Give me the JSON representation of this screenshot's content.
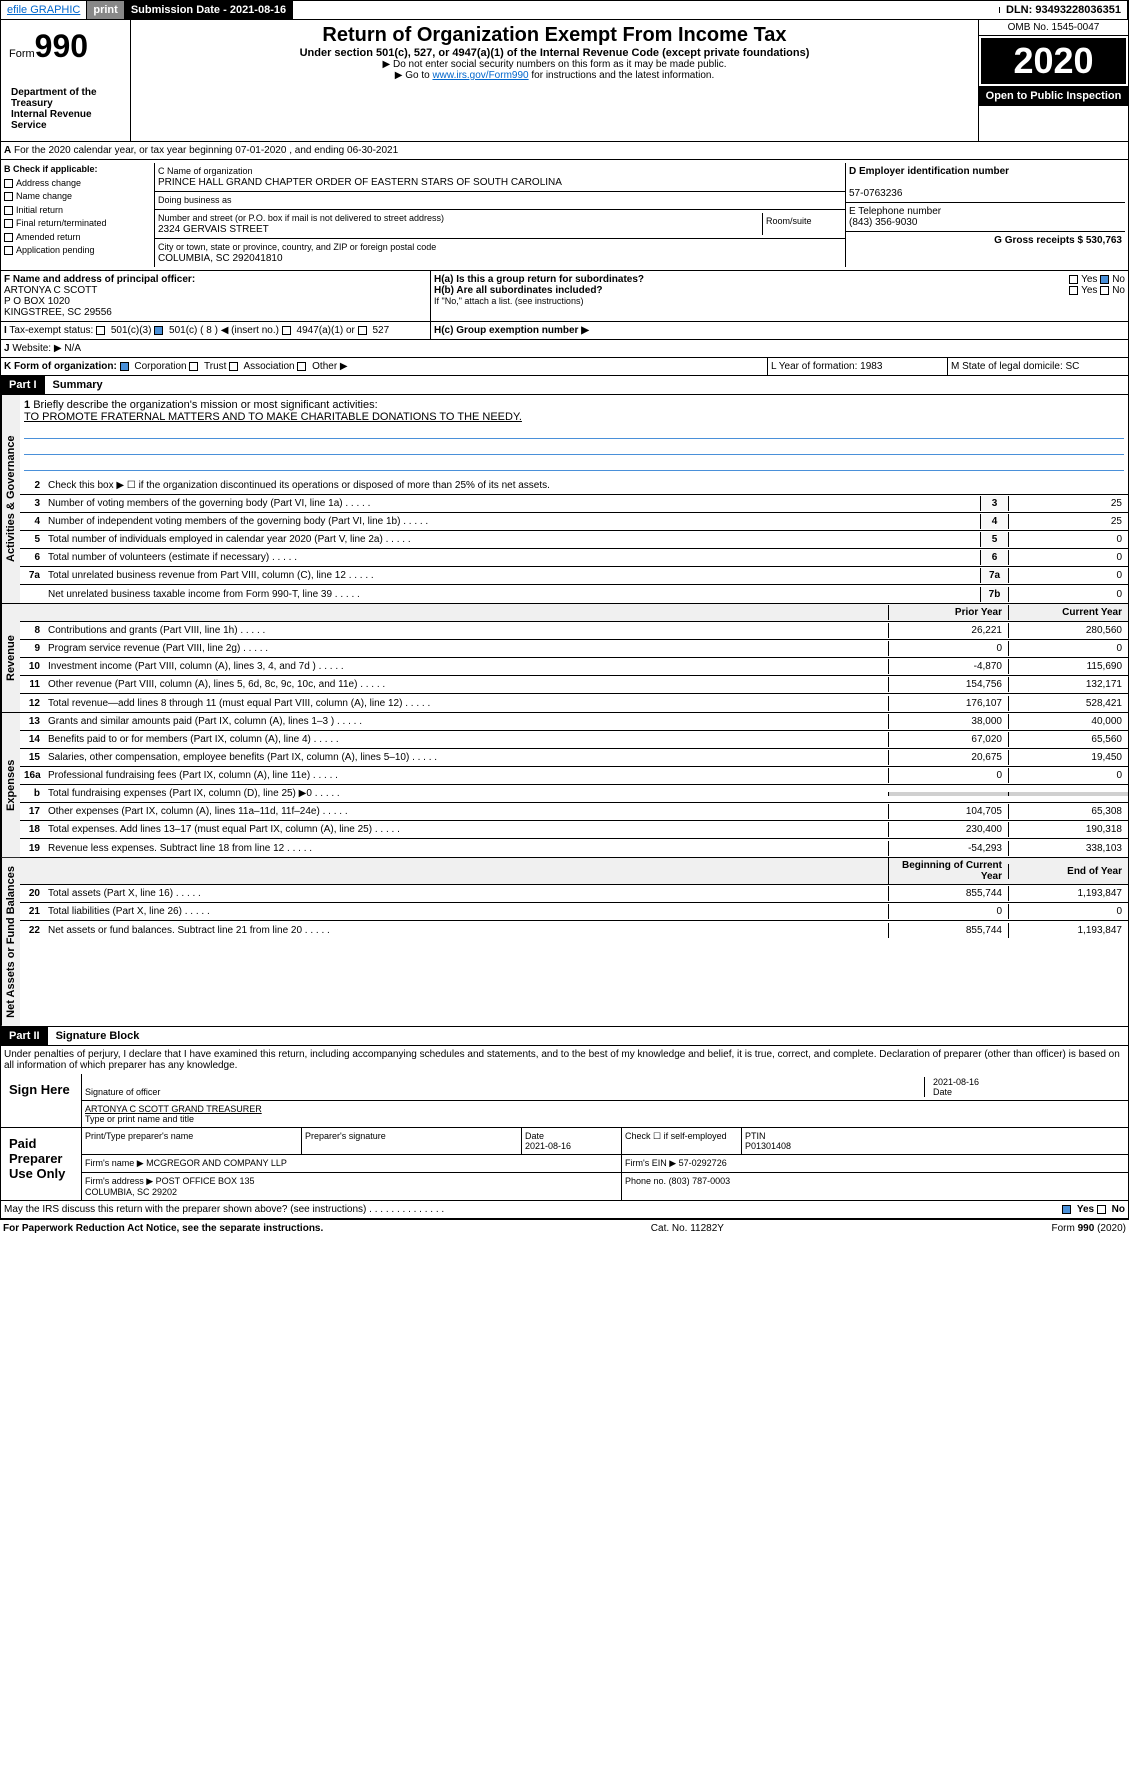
{
  "topbar": {
    "efile": "efile GRAPHIC",
    "print": "print",
    "submission_label": "Submission Date - 2021-08-16",
    "dln": "DLN: 93493228036351"
  },
  "header": {
    "form_prefix": "Form",
    "form_number": "990",
    "title": "Return of Organization Exempt From Income Tax",
    "subtitle": "Under section 501(c), 527, or 4947(a)(1) of the Internal Revenue Code (except private foundations)",
    "note1": "▶ Do not enter social security numbers on this form as it may be made public.",
    "note2_prefix": "▶ Go to ",
    "note2_link": "www.irs.gov/Form990",
    "note2_suffix": " for instructions and the latest information.",
    "dept": "Department of the Treasury\nInternal Revenue Service",
    "omb": "OMB No. 1545-0047",
    "year": "2020",
    "open": "Open to Public Inspection"
  },
  "section_a": {
    "tax_year": "For the 2020 calendar year, or tax year beginning 07-01-2020    , and ending 06-30-2021",
    "check_label": "B Check if applicable:",
    "checks": [
      "Address change",
      "Name change",
      "Initial return",
      "Final return/terminated",
      "Amended return",
      "Application pending"
    ],
    "c_label": "C Name of organization",
    "org_name": "PRINCE HALL GRAND CHAPTER ORDER OF EASTERN STARS OF SOUTH CAROLINA",
    "dba_label": "Doing business as",
    "addr_label": "Number and street (or P.O. box if mail is not delivered to street address)",
    "room_label": "Room/suite",
    "address": "2324 GERVAIS STREET",
    "city_label": "City or town, state or province, country, and ZIP or foreign postal code",
    "city": "COLUMBIA, SC  292041810",
    "d_label": "D Employer identification number",
    "ein": "57-0763236",
    "e_label": "E Telephone number",
    "phone": "(843) 356-9030",
    "g_label": "G Gross receipts $ 530,763",
    "f_label": "F  Name and address of principal officer:",
    "officer": "ARTONYA C SCOTT\nP O BOX 1020\nKINGSTREE, SC  29556",
    "ha_label": "H(a)  Is this a group return for subordinates?",
    "hb_label": "H(b)  Are all subordinates included?",
    "hb_note": "If \"No,\" attach a list. (see instructions)",
    "hc_label": "H(c)  Group exemption number ▶",
    "yes": "Yes",
    "no": "No",
    "i_label": "Tax-exempt status:",
    "i_501c3": "501(c)(3)",
    "i_501c": "501(c) ( 8 ) ◀ (insert no.)",
    "i_4947": "4947(a)(1) or",
    "i_527": "527",
    "j_label": "Website: ▶",
    "website": "N/A",
    "k_label": "K Form of organization:",
    "k_corp": "Corporation",
    "k_trust": "Trust",
    "k_assoc": "Association",
    "k_other": "Other ▶",
    "l_label": "L Year of formation: 1983",
    "m_label": "M State of legal domicile: SC"
  },
  "part1": {
    "header": "Part I",
    "title": "Summary",
    "line1_label": "Briefly describe the organization's mission or most significant activities:",
    "mission": "TO PROMOTE FRATERNAL MATTERS AND TO MAKE CHARITABLE DONATIONS TO THE NEEDY.",
    "line2": "Check this box ▶ ☐  if the organization discontinued its operations or disposed of more than 25% of its net assets.",
    "vlabels": {
      "gov": "Activities & Governance",
      "rev": "Revenue",
      "exp": "Expenses",
      "net": "Net Assets or Fund Balances"
    },
    "cols": {
      "prior": "Prior Year",
      "current": "Current Year",
      "begin": "Beginning of Current Year",
      "end": "End of Year"
    },
    "rows": [
      {
        "n": "3",
        "d": "Number of voting members of the governing body (Part VI, line 1a)",
        "box": "3",
        "v2": "25"
      },
      {
        "n": "4",
        "d": "Number of independent voting members of the governing body (Part VI, line 1b)",
        "box": "4",
        "v2": "25"
      },
      {
        "n": "5",
        "d": "Total number of individuals employed in calendar year 2020 (Part V, line 2a)",
        "box": "5",
        "v2": "0"
      },
      {
        "n": "6",
        "d": "Total number of volunteers (estimate if necessary)",
        "box": "6",
        "v2": "0"
      },
      {
        "n": "7a",
        "d": "Total unrelated business revenue from Part VIII, column (C), line 12",
        "box": "7a",
        "v2": "0"
      },
      {
        "n": "",
        "d": "Net unrelated business taxable income from Form 990-T, line 39",
        "box": "7b",
        "v2": "0"
      }
    ],
    "rev_rows": [
      {
        "n": "8",
        "d": "Contributions and grants (Part VIII, line 1h)",
        "v1": "26,221",
        "v2": "280,560"
      },
      {
        "n": "9",
        "d": "Program service revenue (Part VIII, line 2g)",
        "v1": "0",
        "v2": "0"
      },
      {
        "n": "10",
        "d": "Investment income (Part VIII, column (A), lines 3, 4, and 7d )",
        "v1": "-4,870",
        "v2": "115,690"
      },
      {
        "n": "11",
        "d": "Other revenue (Part VIII, column (A), lines 5, 6d, 8c, 9c, 10c, and 11e)",
        "v1": "154,756",
        "v2": "132,171"
      },
      {
        "n": "12",
        "d": "Total revenue—add lines 8 through 11 (must equal Part VIII, column (A), line 12)",
        "v1": "176,107",
        "v2": "528,421"
      }
    ],
    "exp_rows": [
      {
        "n": "13",
        "d": "Grants and similar amounts paid (Part IX, column (A), lines 1–3 )",
        "v1": "38,000",
        "v2": "40,000"
      },
      {
        "n": "14",
        "d": "Benefits paid to or for members (Part IX, column (A), line 4)",
        "v1": "67,020",
        "v2": "65,560"
      },
      {
        "n": "15",
        "d": "Salaries, other compensation, employee benefits (Part IX, column (A), lines 5–10)",
        "v1": "20,675",
        "v2": "19,450"
      },
      {
        "n": "16a",
        "d": "Professional fundraising fees (Part IX, column (A), line 11e)",
        "v1": "0",
        "v2": "0"
      },
      {
        "n": "b",
        "d": "Total fundraising expenses (Part IX, column (D), line 25) ▶0",
        "v1": "",
        "v2": "",
        "shaded": true
      },
      {
        "n": "17",
        "d": "Other expenses (Part IX, column (A), lines 11a–11d, 11f–24e)",
        "v1": "104,705",
        "v2": "65,308"
      },
      {
        "n": "18",
        "d": "Total expenses. Add lines 13–17 (must equal Part IX, column (A), line 25)",
        "v1": "230,400",
        "v2": "190,318"
      },
      {
        "n": "19",
        "d": "Revenue less expenses. Subtract line 18 from line 12",
        "v1": "-54,293",
        "v2": "338,103"
      }
    ],
    "net_rows": [
      {
        "n": "20",
        "d": "Total assets (Part X, line 16)",
        "v1": "855,744",
        "v2": "1,193,847"
      },
      {
        "n": "21",
        "d": "Total liabilities (Part X, line 26)",
        "v1": "0",
        "v2": "0"
      },
      {
        "n": "22",
        "d": "Net assets or fund balances. Subtract line 21 from line 20",
        "v1": "855,744",
        "v2": "1,193,847"
      }
    ]
  },
  "part2": {
    "header": "Part II",
    "title": "Signature Block",
    "perjury": "Under penalties of perjury, I declare that I have examined this return, including accompanying schedules and statements, and to the best of my knowledge and belief, it is true, correct, and complete. Declaration of preparer (other than officer) is based on all information of which preparer has any knowledge.",
    "sign_here": "Sign Here",
    "sig_officer": "Signature of officer",
    "date": "2021-08-16",
    "date_label": "Date",
    "officer_name": "ARTONYA C SCOTT GRAND TREASURER",
    "type_name": "Type or print name and title",
    "paid": "Paid Preparer Use Only",
    "prep_name_label": "Print/Type preparer's name",
    "prep_sig_label": "Preparer's signature",
    "prep_date_label": "Date",
    "prep_date": "2021-08-16",
    "check_self": "Check ☐ if self-employed",
    "ptin_label": "PTIN",
    "ptin": "P01301408",
    "firm_name_label": "Firm's name     ▶",
    "firm_name": "MCGREGOR AND COMPANY LLP",
    "firm_ein_label": "Firm's EIN ▶",
    "firm_ein": "57-0292726",
    "firm_addr_label": "Firm's address ▶",
    "firm_addr": "POST OFFICE BOX 135\nCOLUMBIA, SC  29202",
    "phone_label": "Phone no.",
    "firm_phone": "(803) 787-0003",
    "discuss": "May the IRS discuss this return with the preparer shown above? (see instructions)",
    "discuss_yes": "Yes",
    "discuss_no": "No"
  },
  "footer": {
    "paperwork": "For Paperwork Reduction Act Notice, see the separate instructions.",
    "cat": "Cat. No. 11282Y",
    "form": "Form 990 (2020)"
  }
}
